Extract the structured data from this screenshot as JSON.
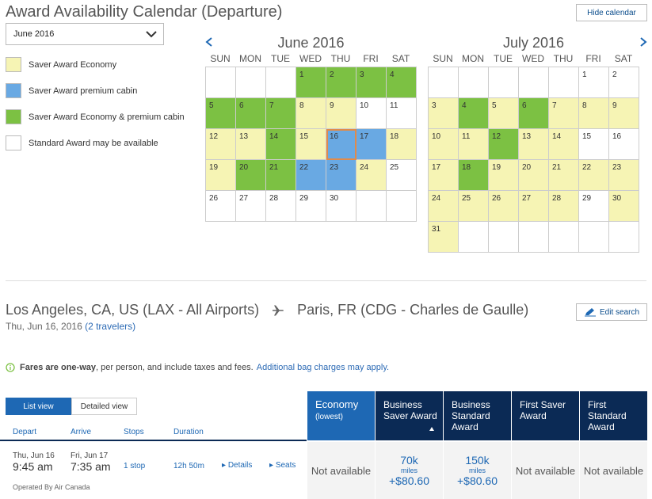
{
  "header": {
    "title": "Award Availability Calendar (Departure)",
    "hide_calendar": "Hide calendar",
    "month_select": "June 2016"
  },
  "legend": [
    {
      "label": "Saver Award Economy",
      "color": "#f6f4b4"
    },
    {
      "label": "Saver Award premium cabin",
      "color": "#69a9e3"
    },
    {
      "label": "Saver Award Economy & premium cabin",
      "color": "#7cc143"
    },
    {
      "label": "Standard Award may be available",
      "color": "#ffffff"
    }
  ],
  "dow": [
    "SUN",
    "MON",
    "TUE",
    "WED",
    "THU",
    "FRI",
    "SAT"
  ],
  "calendars": [
    {
      "title": "June 2016",
      "cells": [
        {
          "d": "",
          "t": "e"
        },
        {
          "d": "",
          "t": "e"
        },
        {
          "d": "",
          "t": "e"
        },
        {
          "d": "1",
          "t": "b"
        },
        {
          "d": "2",
          "t": "b"
        },
        {
          "d": "3",
          "t": "b"
        },
        {
          "d": "4",
          "t": "b"
        },
        {
          "d": "5",
          "t": "b"
        },
        {
          "d": "6",
          "t": "b"
        },
        {
          "d": "7",
          "t": "b"
        },
        {
          "d": "8",
          "t": "s"
        },
        {
          "d": "9",
          "t": "s"
        },
        {
          "d": "10",
          "t": "w"
        },
        {
          "d": "11",
          "t": "w"
        },
        {
          "d": "12",
          "t": "s"
        },
        {
          "d": "13",
          "t": "s"
        },
        {
          "d": "14",
          "t": "b"
        },
        {
          "d": "15",
          "t": "s"
        },
        {
          "d": "16",
          "t": "p",
          "sel": true
        },
        {
          "d": "17",
          "t": "p"
        },
        {
          "d": "18",
          "t": "s"
        },
        {
          "d": "19",
          "t": "s"
        },
        {
          "d": "20",
          "t": "b"
        },
        {
          "d": "21",
          "t": "b"
        },
        {
          "d": "22",
          "t": "p"
        },
        {
          "d": "23",
          "t": "p"
        },
        {
          "d": "24",
          "t": "s"
        },
        {
          "d": "25",
          "t": "w"
        },
        {
          "d": "26",
          "t": "w"
        },
        {
          "d": "27",
          "t": "w"
        },
        {
          "d": "28",
          "t": "w"
        },
        {
          "d": "29",
          "t": "w"
        },
        {
          "d": "30",
          "t": "w"
        },
        {
          "d": "",
          "t": "e"
        },
        {
          "d": "",
          "t": "e"
        }
      ]
    },
    {
      "title": "July 2016",
      "cells": [
        {
          "d": "",
          "t": "e"
        },
        {
          "d": "",
          "t": "e"
        },
        {
          "d": "",
          "t": "e"
        },
        {
          "d": "",
          "t": "e"
        },
        {
          "d": "",
          "t": "e"
        },
        {
          "d": "1",
          "t": "w"
        },
        {
          "d": "2",
          "t": "w"
        },
        {
          "d": "3",
          "t": "s"
        },
        {
          "d": "4",
          "t": "b"
        },
        {
          "d": "5",
          "t": "s"
        },
        {
          "d": "6",
          "t": "b"
        },
        {
          "d": "7",
          "t": "s"
        },
        {
          "d": "8",
          "t": "s"
        },
        {
          "d": "9",
          "t": "s"
        },
        {
          "d": "10",
          "t": "s"
        },
        {
          "d": "11",
          "t": "s"
        },
        {
          "d": "12",
          "t": "b"
        },
        {
          "d": "13",
          "t": "s"
        },
        {
          "d": "14",
          "t": "s"
        },
        {
          "d": "15",
          "t": "w"
        },
        {
          "d": "16",
          "t": "w"
        },
        {
          "d": "17",
          "t": "s"
        },
        {
          "d": "18",
          "t": "b"
        },
        {
          "d": "19",
          "t": "s"
        },
        {
          "d": "20",
          "t": "s"
        },
        {
          "d": "21",
          "t": "s"
        },
        {
          "d": "22",
          "t": "s"
        },
        {
          "d": "23",
          "t": "s"
        },
        {
          "d": "24",
          "t": "s"
        },
        {
          "d": "25",
          "t": "s"
        },
        {
          "d": "26",
          "t": "s"
        },
        {
          "d": "27",
          "t": "s"
        },
        {
          "d": "28",
          "t": "s"
        },
        {
          "d": "29",
          "t": "w"
        },
        {
          "d": "30",
          "t": "s"
        },
        {
          "d": "31",
          "t": "s"
        },
        {
          "d": "",
          "t": "e"
        },
        {
          "d": "",
          "t": "e"
        },
        {
          "d": "",
          "t": "e"
        },
        {
          "d": "",
          "t": "e"
        },
        {
          "d": "",
          "t": "e"
        },
        {
          "d": "",
          "t": "e"
        }
      ]
    }
  ],
  "search": {
    "origin": "Los Angeles, CA, US (LAX - All Airports)",
    "destination": "Paris, FR (CDG - Charles de Gaulle)",
    "date": "Thu, Jun 16, 2016",
    "travelers": "(2 travelers)",
    "edit_label": "Edit search"
  },
  "fare_note": {
    "bold": "Fares are one-way",
    "rest": ", per person, and include taxes and fees.",
    "link": "Additional bag charges may apply."
  },
  "views": {
    "list": "List view",
    "detailed": "Detailed view"
  },
  "columns": {
    "depart": "Depart",
    "arrive": "Arrive",
    "stops": "Stops",
    "duration": "Duration"
  },
  "fare_headers": [
    {
      "label": "Economy",
      "sub": "(lowest)"
    },
    {
      "label": "Business Saver Award",
      "sub": ""
    },
    {
      "label": "Business Standard Award",
      "sub": ""
    },
    {
      "label": "First Saver Award",
      "sub": ""
    },
    {
      "label": "First Standard Award",
      "sub": ""
    }
  ],
  "flight": {
    "depart_date": "Thu, Jun 16",
    "depart_time": "9:45 am",
    "arrive_date": "Fri, Jun 17",
    "arrive_time": "7:35 am",
    "stops": "1 stop",
    "duration": "12h 50m",
    "details": "Details",
    "seats": "Seats",
    "operated_by": "Operated By Air Canada",
    "fares": [
      {
        "na": "Not available"
      },
      {
        "miles": "70k",
        "unit": "miles",
        "tax": "+$80.60"
      },
      {
        "miles": "150k",
        "unit": "miles",
        "tax": "+$80.60"
      },
      {
        "na": "Not available"
      },
      {
        "na": "Not available"
      }
    ]
  }
}
